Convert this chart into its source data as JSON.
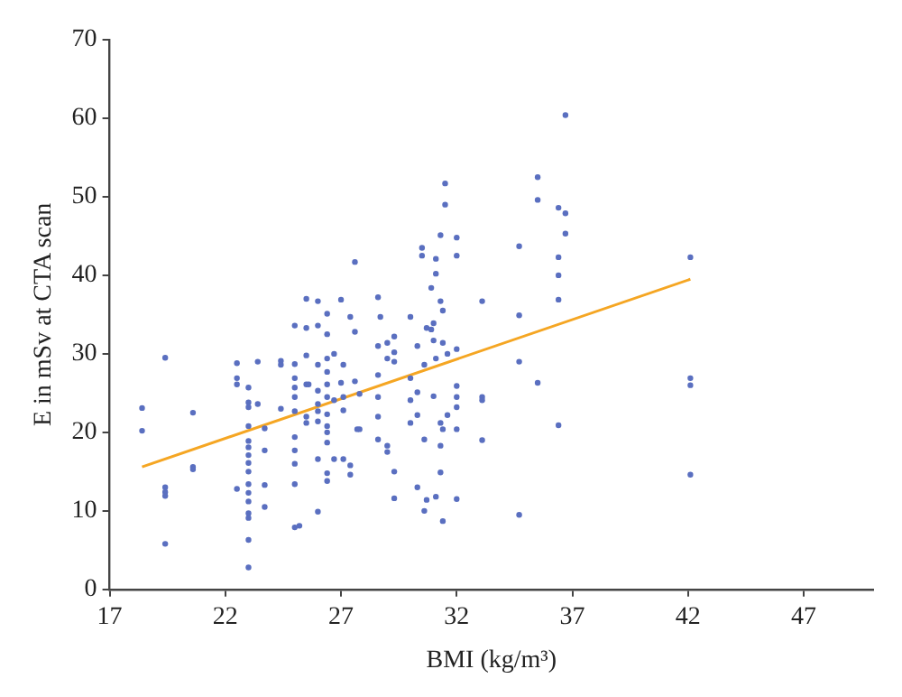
{
  "chart_data": {
    "type": "scatter",
    "xlabel": "BMI (kg/m³)",
    "ylabel": "E in mSv at CTA scan",
    "xlim": [
      17,
      50
    ],
    "xticks": [
      17,
      22,
      27,
      32,
      37,
      42,
      47
    ],
    "ylim": [
      0,
      70
    ],
    "yticks": [
      0,
      10,
      20,
      30,
      40,
      50,
      60,
      70
    ],
    "grid": false,
    "legend": false,
    "series": [
      {
        "marker": "circle",
        "color": "#5a6fc0",
        "x": [
          18.4,
          18.4,
          19.4,
          19.4,
          19.4,
          19.4,
          19.4,
          20.6,
          20.6,
          20.6,
          22.5,
          22.5,
          22.5,
          22.5,
          23.0,
          23.0,
          23.0,
          23.0,
          23.0,
          23.0,
          23.0,
          23.0,
          23.0,
          23.0,
          23.0,
          23.0,
          23.0,
          23.0,
          23.0,
          23.0,
          23.4,
          23.4,
          23.7,
          23.7,
          23.7,
          23.7,
          24.4,
          24.4,
          24.4,
          25.0,
          25.0,
          25.0,
          25.0,
          25.0,
          25.0,
          25.0,
          25.0,
          25.0,
          25.0,
          25.0,
          25.2,
          25.5,
          25.5,
          25.5,
          25.5,
          25.5,
          25.5,
          25.6,
          26.0,
          26.0,
          26.0,
          26.0,
          26.0,
          26.0,
          26.0,
          26.0,
          26.0,
          26.4,
          26.4,
          26.4,
          26.4,
          26.4,
          26.4,
          26.4,
          26.4,
          26.4,
          26.4,
          26.4,
          26.4,
          26.7,
          27.0,
          27.0,
          27.1,
          27.1,
          26.7,
          26.7,
          27.1,
          27.1,
          27.4,
          27.4,
          27.4,
          27.6,
          27.6,
          27.6,
          27.7,
          27.8,
          27.8,
          28.6,
          28.6,
          28.6,
          28.6,
          28.6,
          28.6,
          28.7,
          29.0,
          29.0,
          29.0,
          29.0,
          29.3,
          29.3,
          29.3,
          29.3,
          29.3,
          30.0,
          30.0,
          30.0,
          30.0,
          30.3,
          30.3,
          30.3,
          30.3,
          30.5,
          30.5,
          30.6,
          30.6,
          30.7,
          30.6,
          30.7,
          30.9,
          30.9,
          31.0,
          31.0,
          31.0,
          31.1,
          31.1,
          31.1,
          31.1,
          31.3,
          31.3,
          31.4,
          31.4,
          31.3,
          31.4,
          31.3,
          31.3,
          31.4,
          31.5,
          31.5,
          31.6,
          31.6,
          32.0,
          32.0,
          32.0,
          32.0,
          32.0,
          32.0,
          32.0,
          32.0,
          33.1,
          33.1,
          33.1,
          33.1,
          34.7,
          34.7,
          34.7,
          34.7,
          35.5,
          35.5,
          35.5,
          36.4,
          36.4,
          36.4,
          36.4,
          36.4,
          36.7,
          36.7,
          36.7,
          42.1,
          42.1,
          42.1,
          42.1
        ],
        "values": [
          23.1,
          20.2,
          29.5,
          13.0,
          12.4,
          11.9,
          5.8,
          22.5,
          15.6,
          15.3,
          28.8,
          26.9,
          26.1,
          12.8,
          25.7,
          23.8,
          23.2,
          20.8,
          18.9,
          18.1,
          17.1,
          16.1,
          15.0,
          13.4,
          12.3,
          11.2,
          9.7,
          9.1,
          6.3,
          2.8,
          29.0,
          23.6,
          20.5,
          17.7,
          13.3,
          10.5,
          29.1,
          28.6,
          23.0,
          33.6,
          28.7,
          26.9,
          25.7,
          24.5,
          22.7,
          19.4,
          17.7,
          16.0,
          13.4,
          7.9,
          8.1,
          37.0,
          33.3,
          29.8,
          26.1,
          22.0,
          21.2,
          26.1,
          36.7,
          33.6,
          28.6,
          25.3,
          23.6,
          22.7,
          21.4,
          16.6,
          9.9,
          35.1,
          32.5,
          29.4,
          27.7,
          26.1,
          24.5,
          22.3,
          20.8,
          20.0,
          18.7,
          14.8,
          13.8,
          16.6,
          36.9,
          26.3,
          16.6,
          28.6,
          30.0,
          24.1,
          24.5,
          22.8,
          34.7,
          15.8,
          14.6,
          41.7,
          32.8,
          26.5,
          20.4,
          20.4,
          24.9,
          37.2,
          31.0,
          27.3,
          24.5,
          22.0,
          19.1,
          34.7,
          31.4,
          18.3,
          17.5,
          29.4,
          32.2,
          30.2,
          29.0,
          15.0,
          11.6,
          34.7,
          26.9,
          24.1,
          21.2,
          31.0,
          25.1,
          22.2,
          13.0,
          43.5,
          42.5,
          28.6,
          19.1,
          11.4,
          10.0,
          33.3,
          38.4,
          33.1,
          31.7,
          24.6,
          33.9,
          42.1,
          40.2,
          29.4,
          11.8,
          45.1,
          36.7,
          35.5,
          31.4,
          21.2,
          20.4,
          18.3,
          14.9,
          8.7,
          51.7,
          49.0,
          22.2,
          30.0,
          44.8,
          42.5,
          30.6,
          25.9,
          24.5,
          23.2,
          20.4,
          11.5,
          36.7,
          24.5,
          24.1,
          19.0,
          43.7,
          34.9,
          29.0,
          9.5,
          52.5,
          49.6,
          26.3,
          48.6,
          42.3,
          40.0,
          36.9,
          20.9,
          60.4,
          47.9,
          45.3,
          42.3,
          26.9,
          26.0,
          14.6
        ]
      },
      {
        "type": "line",
        "marker": "none",
        "color": "#f5a623",
        "x": [
          18.4,
          42.1
        ],
        "values": [
          15.6,
          39.5
        ]
      }
    ]
  }
}
